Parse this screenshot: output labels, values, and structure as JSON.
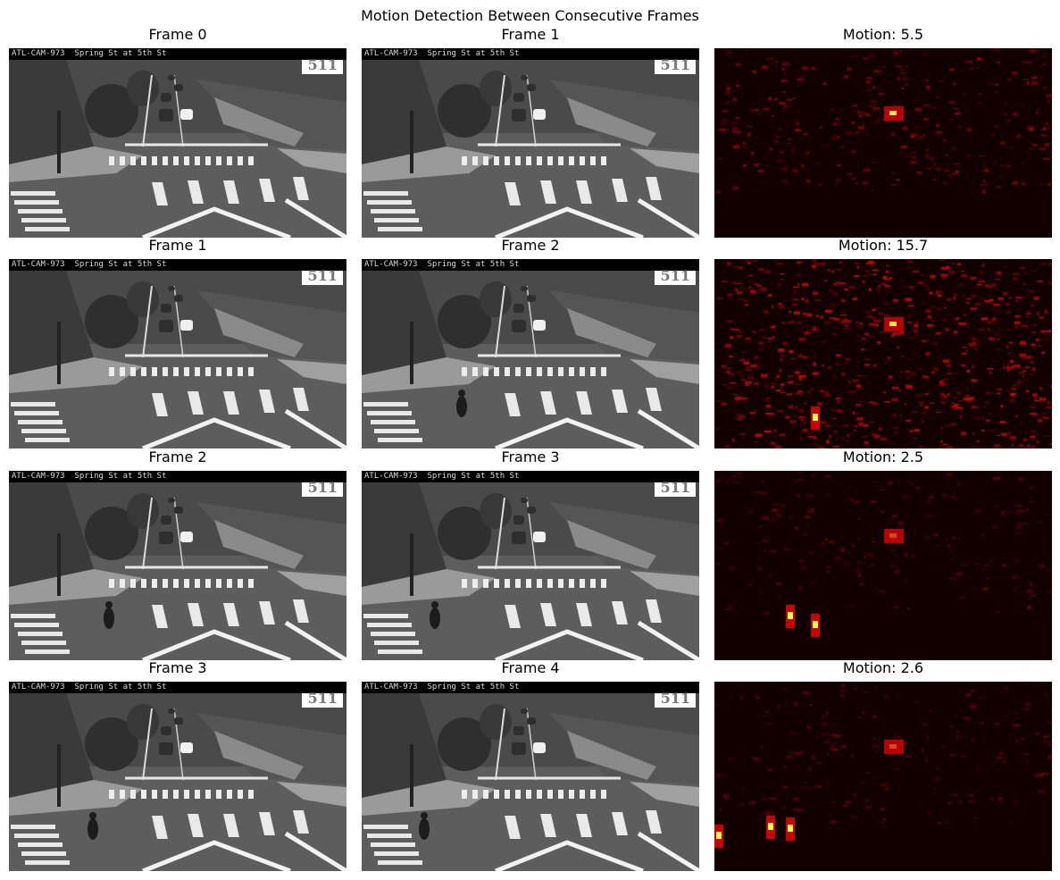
{
  "suptitle": "Motion Detection Between Consecutive Frames",
  "camera_caption": "ATL-CAM-973  Spring St at 5th St",
  "logo_text": "511",
  "rows": [
    {
      "frame_a": "Frame 0",
      "frame_b": "Frame 1",
      "motion": "Motion: 5.5",
      "motion_value": 5.5,
      "has_pedestrian_a": false,
      "has_pedestrian_b": false
    },
    {
      "frame_a": "Frame 1",
      "frame_b": "Frame 2",
      "motion": "Motion: 15.7",
      "motion_value": 15.7,
      "has_pedestrian_a": false,
      "has_pedestrian_b": true
    },
    {
      "frame_a": "Frame 2",
      "frame_b": "Frame 3",
      "motion": "Motion: 2.5",
      "motion_value": 2.5,
      "has_pedestrian_a": true,
      "has_pedestrian_b": true
    },
    {
      "frame_a": "Frame 3",
      "frame_b": "Frame 4",
      "motion": "Motion: 2.6",
      "motion_value": 2.6,
      "has_pedestrian_a": true,
      "has_pedestrian_b": true
    }
  ],
  "colors": {
    "heat_low": "#120000",
    "heat_mid": "#cc0000",
    "heat_high": "#ffff40"
  }
}
